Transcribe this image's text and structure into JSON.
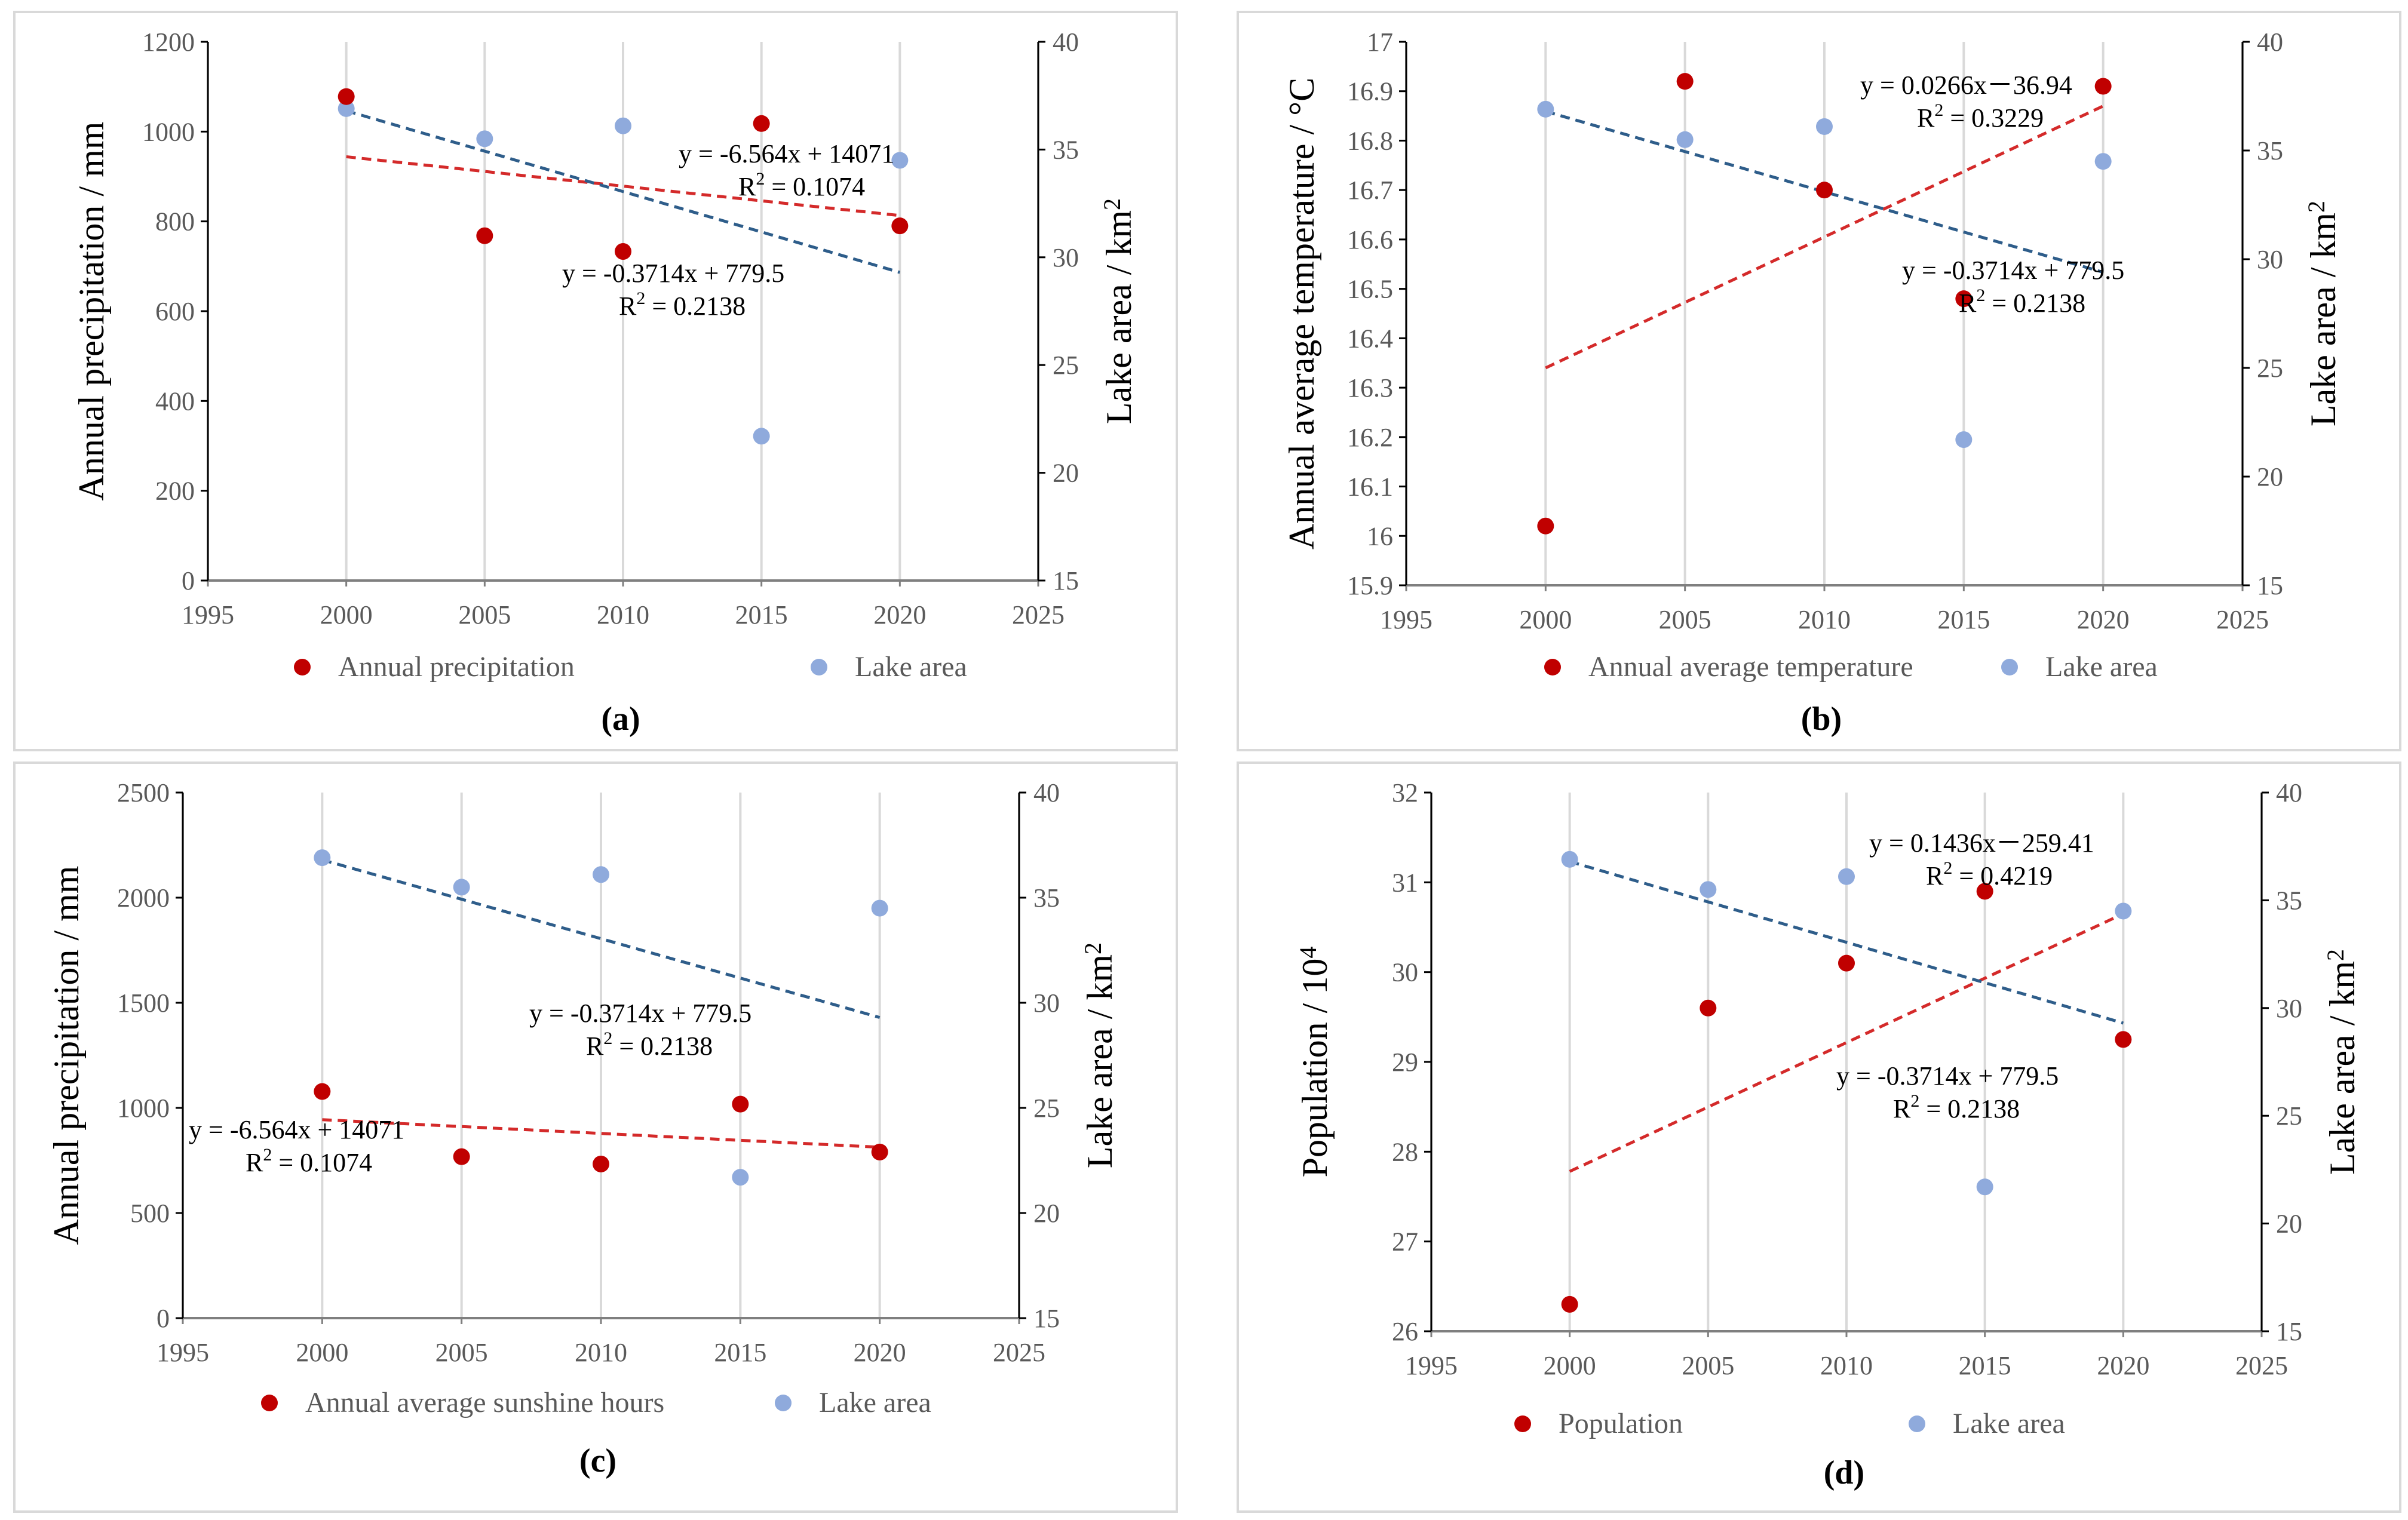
{
  "colors": {
    "red_series": "#c00000",
    "blue_series": "#8faadc",
    "red_trend": "#d42a2a",
    "blue_trend": "#2e5d8a",
    "grid": "#d9d9d9"
  },
  "chart_data": [
    {
      "type": "scatter",
      "panel_label": "(a)",
      "x": [
        2000,
        2005,
        2010,
        2015,
        2020
      ],
      "xlim": [
        1995,
        2025
      ],
      "xticks": [
        "1995",
        "2000",
        "2005",
        "2010",
        "2015",
        "2020",
        "2025"
      ],
      "ylabel": "Annual precipitation / mm",
      "ylim": [
        0,
        1200
      ],
      "yticks": [
        "0",
        "200",
        "400",
        "600",
        "800",
        "1000",
        "1200"
      ],
      "y2label": "Lake area / km",
      "y2label_sup": "2",
      "y2lim": [
        15,
        40
      ],
      "y2ticks": [
        "15",
        "20",
        "25",
        "30",
        "35",
        "40"
      ],
      "series": [
        {
          "name": "Annual precipitation",
          "axis": "left",
          "values": [
            1078,
            768,
            733,
            1018,
            790
          ],
          "trend_at_ends": [
            944,
            813
          ]
        },
        {
          "name": "Lake area",
          "axis": "right",
          "values": [
            36.9,
            35.5,
            36.1,
            21.7,
            34.5
          ],
          "trend_at_ends": [
            36.8,
            29.3
          ]
        }
      ],
      "annotations": [
        {
          "eq": "y = -6.564x + 14071",
          "r2_prefix": "R",
          "r2_sup": "2",
          "r2_value": " = 0.1074"
        },
        {
          "eq": "y = -0.3714x + 779.5",
          "r2_prefix": "R",
          "r2_sup": "2",
          "r2_value": " = 0.2138"
        }
      ]
    },
    {
      "type": "scatter",
      "panel_label": "(b)",
      "x": [
        2000,
        2005,
        2010,
        2015,
        2020
      ],
      "xlim": [
        1995,
        2025
      ],
      "xticks": [
        "1995",
        "2000",
        "2005",
        "2010",
        "2015",
        "2020",
        "2025"
      ],
      "ylabel": "Annual average temperature / °C",
      "ylim": [
        15.9,
        17
      ],
      "yticks": [
        "15.9",
        "16",
        "16.1",
        "16.2",
        "16.3",
        "16.4",
        "16.5",
        "16.6",
        "16.7",
        "16.8",
        "16.9",
        "17"
      ],
      "y2label": "Lake area / km",
      "y2label_sup": "2",
      "y2lim": [
        15,
        40
      ],
      "y2ticks": [
        "15",
        "20",
        "25",
        "30",
        "35",
        "40"
      ],
      "series": [
        {
          "name": "Annual average temperature",
          "axis": "left",
          "values": [
            16.02,
            16.92,
            16.7,
            16.48,
            16.91
          ],
          "trend_at_ends": [
            16.34,
            16.87
          ]
        },
        {
          "name": "Lake area",
          "axis": "right",
          "values": [
            36.9,
            35.5,
            36.1,
            21.7,
            34.5
          ],
          "trend_at_ends": [
            36.8,
            29.4
          ]
        }
      ],
      "annotations": [
        {
          "eq": "y = 0.0266x－36.94",
          "r2_prefix": "R",
          "r2_sup": "2",
          "r2_value": " = 0.3229"
        },
        {
          "eq": "y = -0.3714x + 779.5",
          "r2_prefix": "R",
          "r2_sup": "2",
          "r2_value": " = 0.2138"
        }
      ]
    },
    {
      "type": "scatter",
      "panel_label": "(c)",
      "x": [
        2000,
        2005,
        2010,
        2015,
        2020
      ],
      "xlim": [
        1995,
        2025
      ],
      "xticks": [
        "1995",
        "2000",
        "2005",
        "2010",
        "2015",
        "2020",
        "2025"
      ],
      "ylabel": "Annual precipitation / mm",
      "ylim": [
        0,
        2500
      ],
      "yticks": [
        "0",
        "500",
        "1000",
        "1500",
        "2000",
        "2500"
      ],
      "y2label": "Lake area / km",
      "y2label_sup": "2",
      "y2lim": [
        15,
        40
      ],
      "y2ticks": [
        "15",
        "20",
        "25",
        "30",
        "35",
        "40"
      ],
      "series": [
        {
          "name": "Annual average sunshine hours",
          "axis": "left",
          "values": [
            1078,
            768,
            733,
            1018,
            790
          ],
          "trend_at_ends": [
            944,
            813
          ]
        },
        {
          "name": "Lake area",
          "axis": "right",
          "values": [
            36.9,
            35.5,
            36.1,
            21.7,
            34.5
          ],
          "trend_at_ends": [
            36.8,
            29.3
          ]
        }
      ],
      "annotations": [
        {
          "eq": "y = -0.3714x + 779.5",
          "r2_prefix": "R",
          "r2_sup": "2",
          "r2_value": " = 0.2138"
        },
        {
          "eq": "y = -6.564x + 14071",
          "r2_prefix": "R",
          "r2_sup": "2",
          "r2_value": " = 0.1074"
        }
      ]
    },
    {
      "type": "scatter",
      "panel_label": "(d)",
      "x": [
        2000,
        2005,
        2010,
        2015,
        2020
      ],
      "xlim": [
        1995,
        2025
      ],
      "xticks": [
        "1995",
        "2000",
        "2005",
        "2010",
        "2015",
        "2020",
        "2025"
      ],
      "ylabel": "Population / 10",
      "ylabel_sup": "4",
      "ylim": [
        26,
        32
      ],
      "yticks": [
        "26",
        "27",
        "28",
        "29",
        "30",
        "31",
        "32"
      ],
      "y2label": "Lake area / km",
      "y2label_sup": "2",
      "y2lim": [
        15,
        40
      ],
      "y2ticks": [
        "15",
        "20",
        "25",
        "30",
        "35",
        "40"
      ],
      "series": [
        {
          "name": "Population",
          "axis": "left",
          "values": [
            26.3,
            29.6,
            30.1,
            30.9,
            29.25
          ],
          "trend_at_ends": [
            27.78,
            30.65
          ]
        },
        {
          "name": "Lake area",
          "axis": "right",
          "values": [
            36.9,
            35.5,
            36.1,
            21.7,
            34.5
          ],
          "trend_at_ends": [
            36.8,
            29.3
          ]
        }
      ],
      "annotations": [
        {
          "eq": "y = 0.1436x－259.41",
          "r2_prefix": "R",
          "r2_sup": "2",
          "r2_value": " = 0.4219"
        },
        {
          "eq": "y = -0.3714x + 779.5",
          "r2_prefix": "R",
          "r2_sup": "2",
          "r2_value": " = 0.2138"
        }
      ]
    }
  ]
}
